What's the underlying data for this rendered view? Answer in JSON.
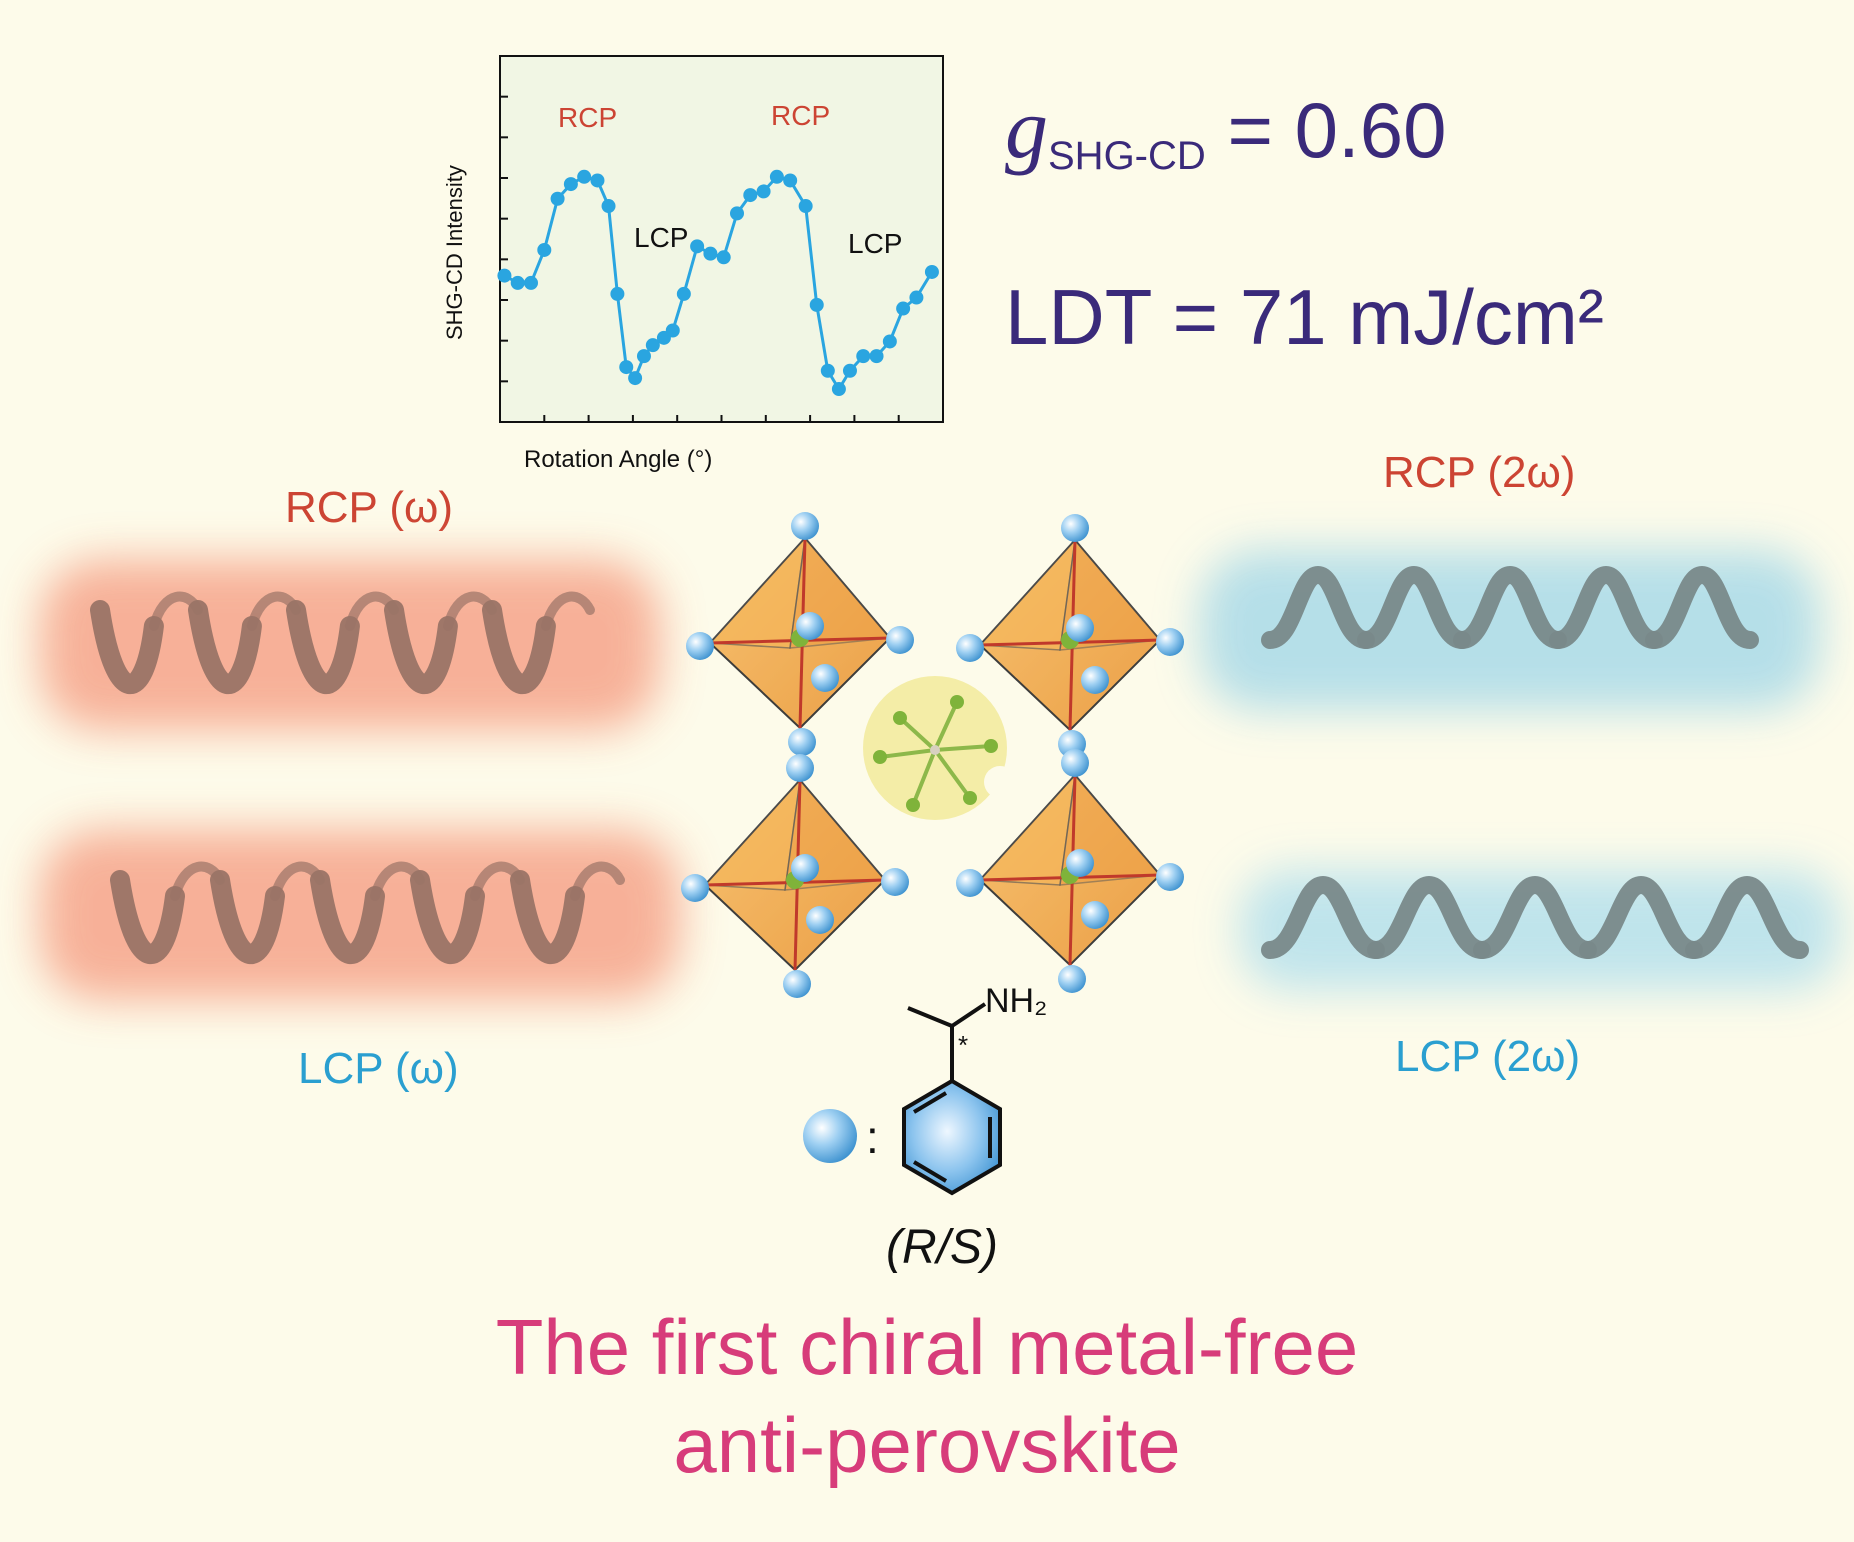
{
  "chart_data": {
    "type": "line",
    "xlabel": "Rotation Angle (°)",
    "ylabel": "SHG-CD Intensity",
    "x_ticks": 9,
    "y_ticks": 8,
    "xlim": [
      0,
      1
    ],
    "ylim": [
      0,
      1
    ],
    "color": "#2aa5e0",
    "series": [
      {
        "x": [
          0.01,
          0.04,
          0.07,
          0.1,
          0.13,
          0.16,
          0.19,
          0.22,
          0.245,
          0.265,
          0.285,
          0.305,
          0.325,
          0.345,
          0.37,
          0.39,
          0.415,
          0.445,
          0.475,
          0.505,
          0.535,
          0.565,
          0.595,
          0.625,
          0.655,
          0.69,
          0.715,
          0.74,
          0.765,
          0.79,
          0.82,
          0.85,
          0.88,
          0.91,
          0.94,
          0.975
        ],
        "y": [
          0.4,
          0.38,
          0.38,
          0.47,
          0.61,
          0.65,
          0.67,
          0.66,
          0.59,
          0.35,
          0.15,
          0.12,
          0.18,
          0.21,
          0.23,
          0.25,
          0.35,
          0.48,
          0.46,
          0.45,
          0.57,
          0.62,
          0.63,
          0.67,
          0.66,
          0.59,
          0.32,
          0.14,
          0.09,
          0.14,
          0.18,
          0.18,
          0.22,
          0.31,
          0.34,
          0.41
        ]
      }
    ],
    "annotations": [
      {
        "text": "RCP",
        "color": "#cc4433"
      },
      {
        "text": "RCP",
        "color": "#cc4433"
      },
      {
        "text": "LCP",
        "color": "#111111"
      },
      {
        "text": "LCP",
        "color": "#111111"
      }
    ]
  },
  "metrics": {
    "g_symbol": "g",
    "g_subscript": "SHG-CD",
    "g_value": " = 0.60",
    "ldt": "LDT = 71 mJ/cm²"
  },
  "labels": {
    "rcp_omega": "RCP (ω)",
    "lcp_omega": "LCP (ω)",
    "rcp_2omega": "RCP (2ω)",
    "lcp_2omega": "LCP (2ω)"
  },
  "molecule": {
    "amine": "NH₂",
    "stereo_mark": "*",
    "colon": ":",
    "configuration": "(R/S)"
  },
  "title": {
    "line1": "The first  chiral metal-free",
    "line2": "anti-perovskite"
  },
  "colors": {
    "background": "#fdfbea",
    "rcp": "#cc4433",
    "lcp": "#2a9fd0",
    "metric": "#3a2a7a",
    "title": "#d73c7a",
    "plot_bg": "#f1f6e4",
    "helix_brown": "#9a7466",
    "helix_gray": "#79898a",
    "glow_red": "#f6a48a",
    "glow_blue": "#aedce8",
    "octahedron": "#f0a84a",
    "ball": "#6fb6e8"
  }
}
